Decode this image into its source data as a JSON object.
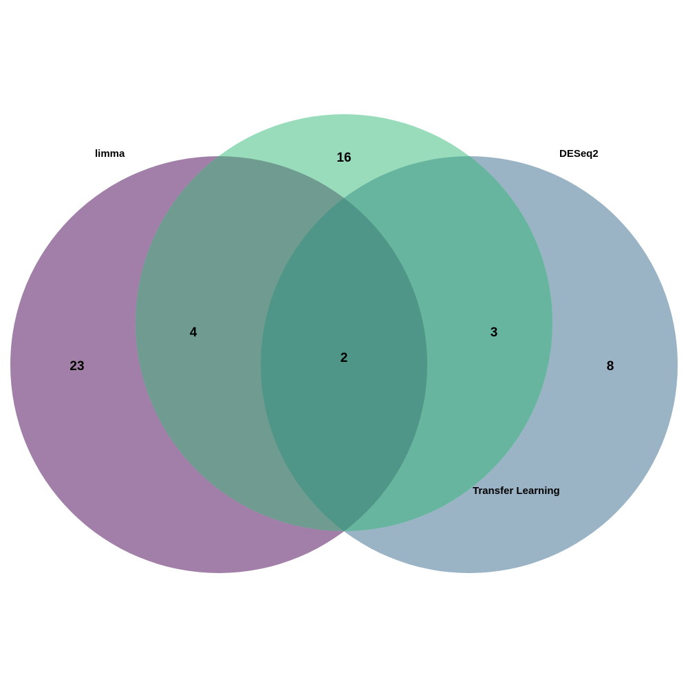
{
  "diagram": {
    "type": "venn",
    "sets": [
      {
        "key": "limma",
        "label": "limma",
        "color": "#440154"
      },
      {
        "key": "transfer",
        "label": "Transfer Learning",
        "color": "#35b779"
      },
      {
        "key": "deseq2",
        "label": "DESeq2",
        "color": "#31688e"
      }
    ],
    "regions": {
      "limma_only": "23",
      "transfer_only": "16",
      "deseq2_only": "8",
      "limma_transfer": "4",
      "transfer_deseq2": "3",
      "all_three": "2"
    }
  }
}
